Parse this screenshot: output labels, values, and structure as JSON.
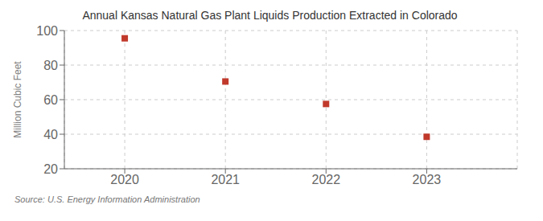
{
  "chart_data": {
    "type": "scatter",
    "title": "Annual Kansas Natural Gas Plant Liquids Production Extracted in Colorado",
    "ylabel": "Million Cubic Feet",
    "annotation": "Source: U.S. Energy Information Administration",
    "x": [
      2020,
      2021,
      2022,
      2023
    ],
    "values": [
      95.5,
      70.5,
      57.5,
      38.5
    ],
    "xlim": [
      2019.4,
      2023.9
    ],
    "xticks": [
      2020,
      2021,
      2022,
      2023
    ],
    "ylim": [
      20,
      100
    ],
    "yticks": [
      20,
      40,
      60,
      80,
      100
    ],
    "color": "#c0392b",
    "marker": "square",
    "grid": true
  }
}
